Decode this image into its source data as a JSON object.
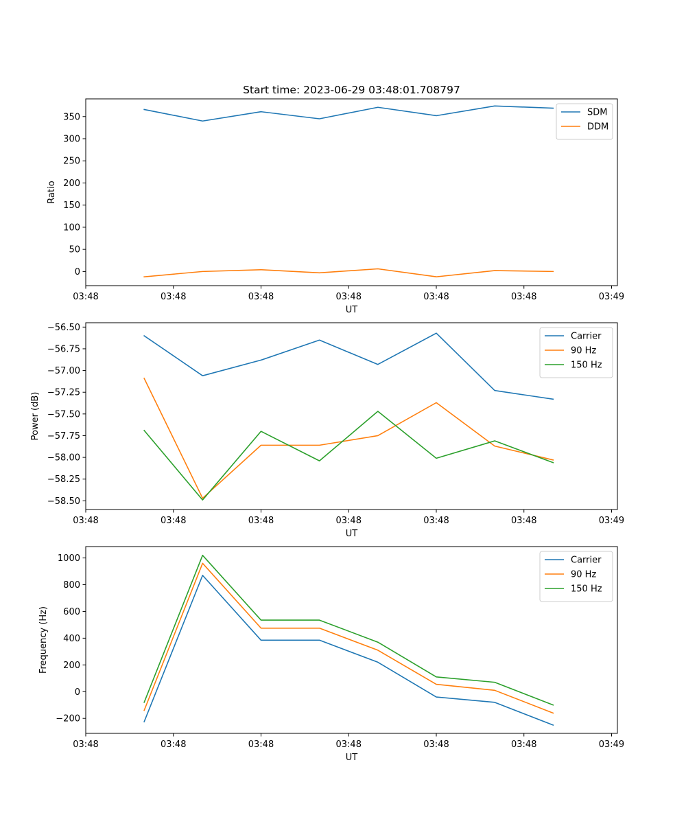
{
  "figure_title": "Start time: 2023-06-29 03:48:01.708797",
  "colors": {
    "blue": "#1f77b4",
    "orange": "#ff7f0e",
    "green": "#2ca02c"
  },
  "chart_data": [
    {
      "type": "line",
      "title": "Start time: 2023-06-29 03:48:01.708797",
      "xlabel": "UT",
      "ylabel": "Ratio",
      "x": [
        1,
        2,
        3,
        4,
        5,
        6,
        7,
        8
      ],
      "x_tick_labels": [
        "03:48",
        "03:48",
        "03:48",
        "03:48",
        "03:48",
        "03:48",
        "03:49"
      ],
      "xlim": [
        0,
        9.1
      ],
      "ylim": [
        -32,
        390
      ],
      "yticks": [
        0,
        50,
        100,
        150,
        200,
        250,
        300,
        350
      ],
      "ytick_labels": [
        "0",
        "50",
        "100",
        "150",
        "200",
        "250",
        "300",
        "350"
      ],
      "legend": "top-right",
      "grid": false,
      "series": [
        {
          "name": "SDM",
          "color": "#1f77b4",
          "values": [
            366,
            340,
            361,
            345,
            371,
            352,
            374,
            369
          ]
        },
        {
          "name": "DDM",
          "color": "#ff7f0e",
          "values": [
            -12,
            0,
            4,
            -3,
            6,
            -12,
            2,
            0
          ]
        }
      ]
    },
    {
      "type": "line",
      "xlabel": "UT",
      "ylabel": "Power (dB)",
      "x": [
        1,
        2,
        3,
        4,
        5,
        6,
        7,
        8
      ],
      "x_tick_labels": [
        "03:48",
        "03:48",
        "03:48",
        "03:48",
        "03:48",
        "03:48",
        "03:49"
      ],
      "xlim": [
        0,
        9.1
      ],
      "ylim": [
        -58.6,
        -56.45
      ],
      "yticks": [
        -56.5,
        -56.75,
        -57.0,
        -57.25,
        -57.5,
        -57.75,
        -58.0,
        -58.25,
        -58.5
      ],
      "ytick_labels": [
        "−56.50",
        "−56.75",
        "−57.00",
        "−57.25",
        "−57.50",
        "−57.75",
        "−58.00",
        "−58.25",
        "−58.50"
      ],
      "legend": "top-right",
      "grid": false,
      "series": [
        {
          "name": "Carrier",
          "color": "#1f77b4",
          "values": [
            -56.6,
            -57.06,
            -56.88,
            -56.65,
            -56.93,
            -56.57,
            -57.23,
            -57.33
          ]
        },
        {
          "name": "90 Hz",
          "color": "#ff7f0e",
          "values": [
            -57.09,
            -58.47,
            -57.86,
            -57.86,
            -57.75,
            -57.37,
            -57.87,
            -58.03
          ]
        },
        {
          "name": "150 Hz",
          "color": "#2ca02c",
          "values": [
            -57.69,
            -58.49,
            -57.7,
            -58.04,
            -57.47,
            -58.01,
            -57.81,
            -58.06
          ]
        }
      ]
    },
    {
      "type": "line",
      "xlabel": "UT",
      "ylabel": "Frequency (Hz)",
      "x": [
        1,
        2,
        3,
        4,
        5,
        6,
        7,
        8
      ],
      "x_tick_labels": [
        "03:48",
        "03:48",
        "03:48",
        "03:48",
        "03:48",
        "03:48",
        "03:49"
      ],
      "xlim": [
        0,
        9.1
      ],
      "ylim": [
        -312,
        1085
      ],
      "yticks": [
        -200,
        0,
        200,
        400,
        600,
        800,
        1000
      ],
      "ytick_labels": [
        "−200",
        "0",
        "200",
        "400",
        "600",
        "800",
        "1000"
      ],
      "legend": "top-right",
      "grid": false,
      "series": [
        {
          "name": "Carrier",
          "color": "#1f77b4",
          "values": [
            -225,
            870,
            385,
            385,
            220,
            -40,
            -80,
            -250
          ]
        },
        {
          "name": "90 Hz",
          "color": "#ff7f0e",
          "values": [
            -140,
            960,
            475,
            475,
            310,
            55,
            10,
            -160
          ]
        },
        {
          "name": "150 Hz",
          "color": "#2ca02c",
          "values": [
            -80,
            1020,
            535,
            535,
            370,
            110,
            70,
            -100
          ]
        }
      ]
    }
  ]
}
